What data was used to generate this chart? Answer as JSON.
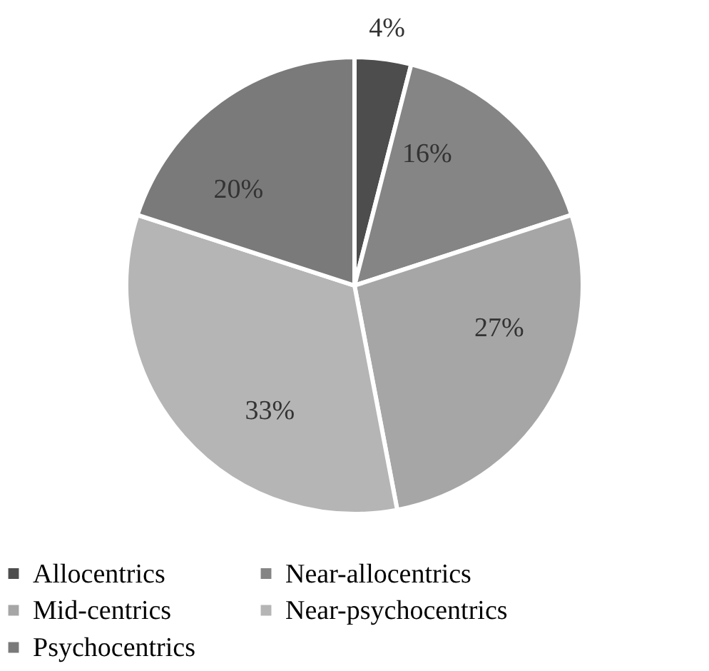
{
  "chart_data": {
    "type": "pie",
    "categories": [
      "Allocentrics",
      "Near-allocentrics",
      "Mid-centrics",
      "Near-psychocentrics",
      "Psychocentrics"
    ],
    "values": [
      4,
      16,
      27,
      33,
      20
    ],
    "value_labels": [
      "4%",
      "16%",
      "27%",
      "33%",
      "20%"
    ],
    "colors": [
      "#4d4d4d",
      "#858585",
      "#a6a6a6",
      "#b5b5b5",
      "#7a7a7a"
    ],
    "legend": "bottom"
  }
}
